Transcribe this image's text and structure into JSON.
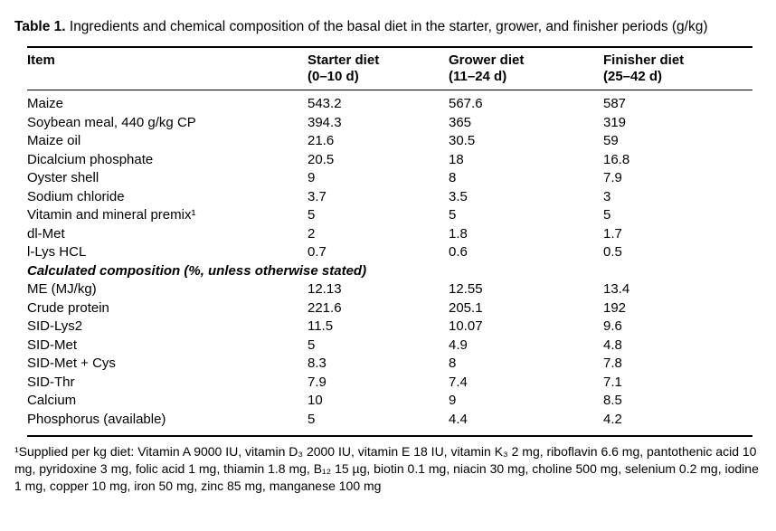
{
  "title": {
    "bold": "Table 1.",
    "rest": " Ingredients and chemical composition of the basal diet in the starter, grower, and finisher periods (g/kg)"
  },
  "table": {
    "header": {
      "item": "Item",
      "cols": [
        {
          "line1": "Starter diet",
          "line2": "(0–10 d)"
        },
        {
          "line1": "Grower diet",
          "line2": "(11–24 d)"
        },
        {
          "line1": "Finisher diet",
          "line2": "(25–42 d)"
        }
      ]
    },
    "ingredient_rows": [
      {
        "item": "Maize",
        "values": [
          "543.2",
          "567.6",
          "587"
        ]
      },
      {
        "item": "Soybean meal, 440 g/kg CP",
        "values": [
          "394.3",
          "365",
          "319"
        ]
      },
      {
        "item": "Maize oil",
        "values": [
          "21.6",
          "30.5",
          "59"
        ]
      },
      {
        "item": "Dicalcium phosphate",
        "values": [
          "20.5",
          "18",
          "16.8"
        ]
      },
      {
        "item": "Oyster shell",
        "values": [
          "9",
          "8",
          "7.9"
        ]
      },
      {
        "item": "Sodium chloride",
        "values": [
          "3.7",
          "3.5",
          "3"
        ]
      },
      {
        "item": "Vitamin and mineral premix¹",
        "values": [
          "5",
          "5",
          "5"
        ]
      },
      {
        "item": "dl-Met",
        "values": [
          "2",
          "1.8",
          "1.7"
        ]
      },
      {
        "item": "l-Lys HCL",
        "values": [
          "0.7",
          "0.6",
          "0.5"
        ]
      }
    ],
    "section_header": "Calculated composition (%, unless otherwise stated)",
    "composition_rows": [
      {
        "item": "ME (MJ/kg)",
        "values": [
          "12.13",
          "12.55",
          "13.4"
        ]
      },
      {
        "item": "Crude protein",
        "values": [
          "221.6",
          "205.1",
          "192"
        ]
      },
      {
        "item": "SID-Lys2",
        "values": [
          "11.5",
          "10.07",
          "9.6"
        ]
      },
      {
        "item": "SID-Met",
        "values": [
          "5",
          "4.9",
          "4.8"
        ]
      },
      {
        "item": "SID-Met + Cys",
        "values": [
          "8.3",
          "8",
          "7.8"
        ]
      },
      {
        "item": "SID-Thr",
        "values": [
          "7.9",
          "7.4",
          "7.1"
        ]
      },
      {
        "item": "Calcium",
        "values": [
          "10",
          "9",
          "8.5"
        ]
      },
      {
        "item": "Phosphorus (available)",
        "values": [
          "5",
          "4.4",
          "4.2"
        ]
      }
    ]
  },
  "footnote": "¹Supplied per kg diet: Vitamin A 9000 IU, vitamin D₃ 2000 IU, vitamin E 18 IU, vitamin K₃ 2 mg, riboflavin 6.6 mg, pantothenic acid 10 mg, pyridoxine 3 mg, folic acid 1 mg, thiamin 1.8 mg, B₁₂ 15 µg, biotin 0.1 mg, niacin 30 mg, choline 500 mg, selenium 0.2 mg, iodine 1 mg, copper 10 mg, iron 50 mg, zinc 85 mg, manganese 100 mg"
}
